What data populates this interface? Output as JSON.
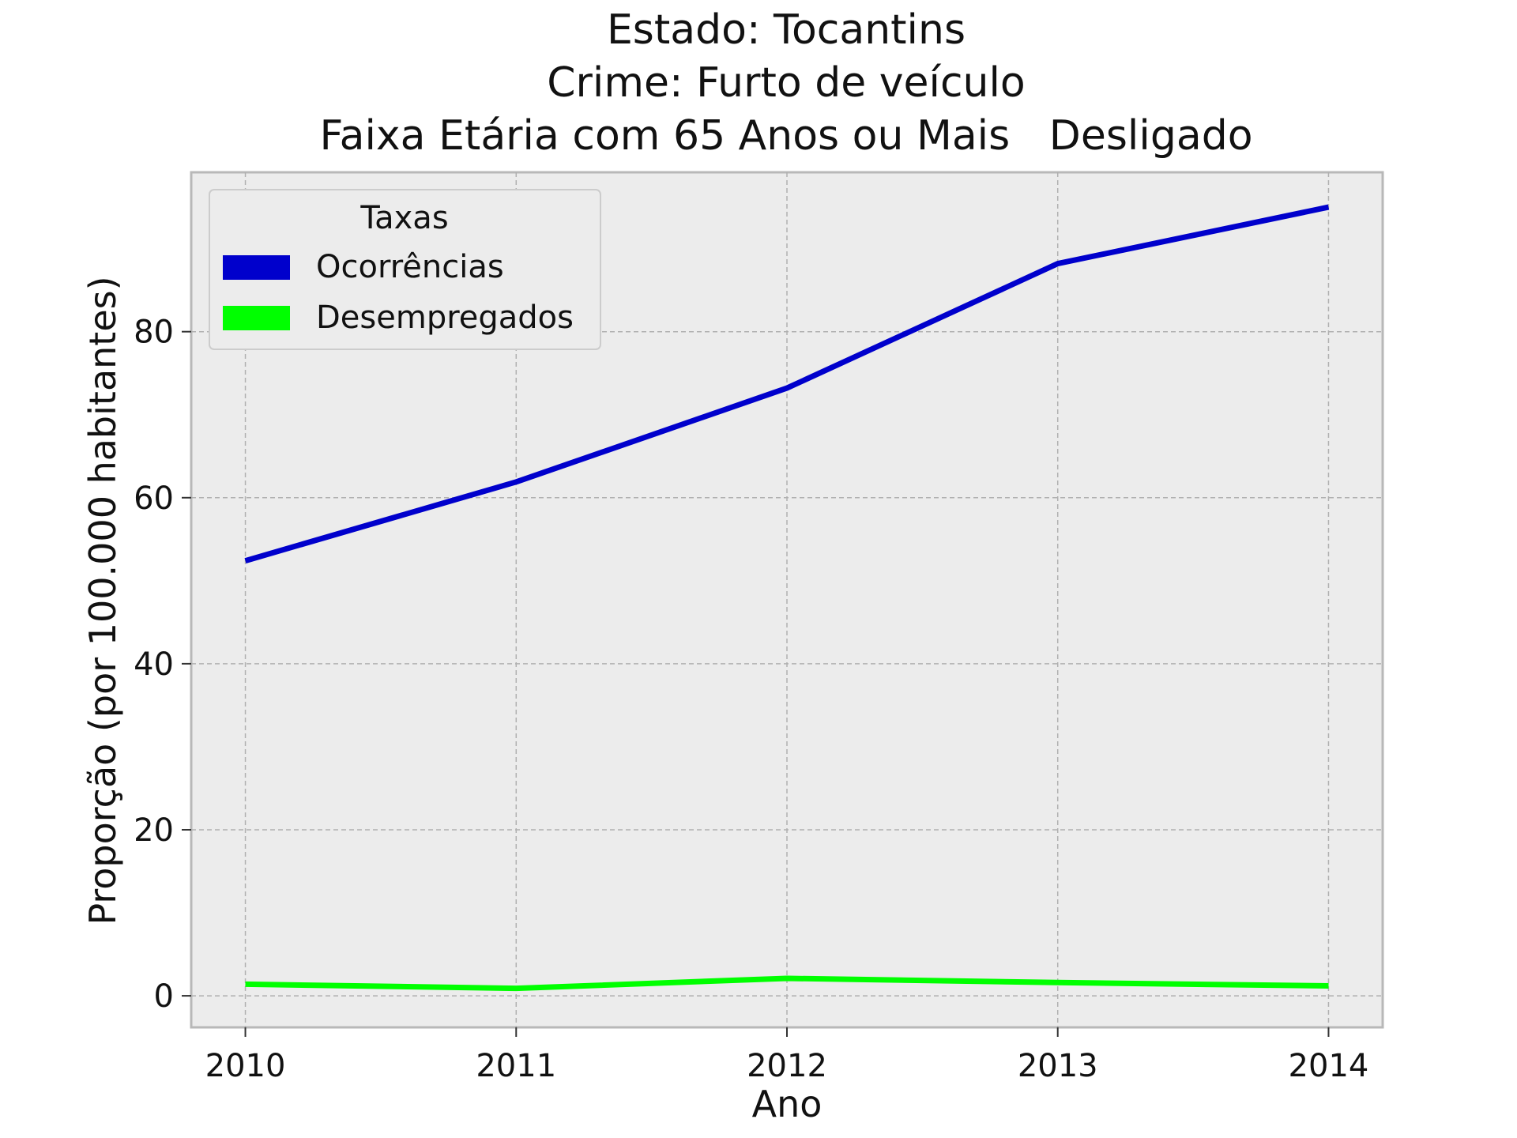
{
  "chart_data": {
    "type": "line",
    "title_lines": [
      "Estado: Tocantins",
      "Crime: Furto de veículo",
      "Faixa Etária com 65 Anos ou Mais   Desligado"
    ],
    "xlabel": "Ano",
    "ylabel": "Proporção (por 100.000 habitantes)",
    "x": [
      2010,
      2011,
      2012,
      2013,
      2014
    ],
    "x_tick_labels": [
      "2010",
      "2011",
      "2012",
      "2013",
      "2014"
    ],
    "y_ticks": [
      0,
      20,
      40,
      60,
      80
    ],
    "y_tick_labels": [
      "0",
      "20",
      "40",
      "60",
      "80"
    ],
    "xlim": [
      2009.8,
      2014.2
    ],
    "ylim": [
      -3.8,
      99.2
    ],
    "grid": true,
    "legend": {
      "title": "Taxas",
      "placement": "top-left"
    },
    "series": [
      {
        "name": "Ocorrências",
        "color": "#0000cc",
        "values": [
          52.4,
          61.9,
          73.2,
          88.2,
          95.0
        ]
      },
      {
        "name": "Desempregados",
        "color": "#00ff00",
        "values": [
          1.4,
          0.9,
          2.1,
          1.6,
          1.2
        ]
      }
    ]
  }
}
